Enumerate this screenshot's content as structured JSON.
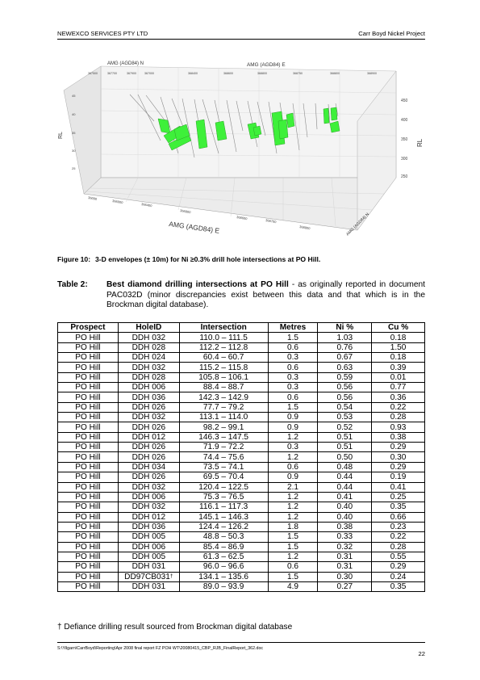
{
  "header": {
    "company": "NEWEXCO SERVICES PTY LTD",
    "project": "Carr Boyd Nickel Project"
  },
  "figure": {
    "label_top_north": "AMG (AGD84) N",
    "label_top_east": "AMG (AGD84) E",
    "label_bottom_east": "AMG (AGD84) E",
    "label_bottom_north": "AMG (AGD84) N",
    "label_rl_left": "RL",
    "label_rl_right": "RL",
    "top_ticks": [
      "367500",
      "367700",
      "367900",
      "367000",
      "368400",
      "368600",
      "368800",
      "368750",
      "368800",
      "368900"
    ],
    "right_ticks": [
      "450",
      "400",
      "350",
      "300",
      "250"
    ],
    "left_ticks": [
      "45",
      "40",
      "35",
      "30",
      "25"
    ],
    "bottom_ticks": [
      "36000",
      "366000",
      "366400",
      "366800",
      "368600",
      "368700",
      "368800"
    ],
    "envelope_color": "#3ef03a"
  },
  "figure_caption": {
    "number": "Figure 10:",
    "text": "3-D envelopes (± 10m) for Ni ≥0.3% drill hole intersections at PO Hill."
  },
  "table_caption": {
    "number": "Table 2:",
    "bold_text": "Best diamond drilling intersections at PO Hill",
    "rest_text": " - as originally reported in document PAC032D (minor discrepancies exist between this data and that which is in the Brockman digital database)."
  },
  "table": {
    "headers": [
      "Prospect",
      "HoleID",
      "Intersection",
      "Metres",
      "Ni %",
      "Cu %"
    ],
    "rows": [
      [
        "PO Hill",
        "DDH 032",
        "110.0 – 111.5",
        "1.5",
        "1.03",
        "0.18"
      ],
      [
        "PO Hill",
        "DDH 028",
        "112.2 – 112.8",
        "0.6",
        "0.76",
        "1.50"
      ],
      [
        "PO Hill",
        "DDH 024",
        "60.4 – 60.7",
        "0.3",
        "0.67",
        "0.18"
      ],
      [
        "PO Hill",
        "DDH 032",
        "115.2 – 115.8",
        "0.6",
        "0.63",
        "0.39"
      ],
      [
        "PO Hill",
        "DDH 028",
        "105.8 – 106.1",
        "0.3",
        "0.59",
        "0.01"
      ],
      [
        "PO Hill",
        "DDH 006",
        "88.4 – 88.7",
        "0.3",
        "0.56",
        "0.77"
      ],
      [
        "PO Hill",
        "DDH 036",
        "142.3 – 142.9",
        "0.6",
        "0.56",
        "0.36"
      ],
      [
        "PO Hill",
        "DDH 026",
        "77.7 – 79.2",
        "1.5",
        "0.54",
        "0.22"
      ],
      [
        "PO Hill",
        "DDH 032",
        "113.1 – 114.0",
        "0.9",
        "0.53",
        "0.28"
      ],
      [
        "PO Hill",
        "DDH 026",
        "98.2 – 99.1",
        "0.9",
        "0.52",
        "0.93"
      ],
      [
        "PO Hill",
        "DDH 012",
        "146.3 – 147.5",
        "1.2",
        "0.51",
        "0.38"
      ],
      [
        "PO Hill",
        "DDH 026",
        "71.9 – 72.2",
        "0.3",
        "0.51",
        "0.29"
      ],
      [
        "PO Hill",
        "DDH 026",
        "74.4 – 75.6",
        "1.2",
        "0.50",
        "0.30"
      ],
      [
        "PO Hill",
        "DDH 034",
        "73.5 – 74.1",
        "0.6",
        "0.48",
        "0.29"
      ],
      [
        "PO Hill",
        "DDH 026",
        "69.5 – 70.4",
        "0.9",
        "0.44",
        "0.19"
      ],
      [
        "PO Hill",
        "DDH 032",
        "120.4 – 122.5",
        "2.1",
        "0.44",
        "0.41"
      ],
      [
        "PO Hill",
        "DDH 006",
        "75.3 – 76.5",
        "1.2",
        "0.41",
        "0.25"
      ],
      [
        "PO Hill",
        "DDH 032",
        "116.1 – 117.3",
        "1.2",
        "0.40",
        "0.35"
      ],
      [
        "PO Hill",
        "DDH 012",
        "145.1 – 146.3",
        "1.2",
        "0.40",
        "0.66"
      ],
      [
        "PO Hill",
        "DDH 036",
        "124.4 – 126.2",
        "1.8",
        "0.38",
        "0.23"
      ],
      [
        "PO Hill",
        "DDH 005",
        "48.8 – 50.3",
        "1.5",
        "0.33",
        "0.22"
      ],
      [
        "PO Hill",
        "DDH 006",
        "85.4 – 86.9",
        "1.5",
        "0.32",
        "0.28"
      ],
      [
        "PO Hill",
        "DDH 005",
        "61.3 – 62.5",
        "1.2",
        "0.31",
        "0.55"
      ],
      [
        "PO Hill",
        "DDH 031",
        "96.0 – 96.6",
        "0.6",
        "0.31",
        "0.29"
      ],
      [
        "PO Hill",
        "DD97CB031",
        "134.1 – 135.6",
        "1.5",
        "0.30",
        "0.24"
      ],
      [
        "PO Hill",
        "DDH 031",
        "89.0 – 93.9",
        "4.9",
        "0.27",
        "0.35"
      ]
    ],
    "dagger_row_index": 24,
    "dagger": "†"
  },
  "footnote": "† Defiance drilling result sourced from Brockman digital database",
  "footer": {
    "path": "S:\\Yilgarn\\CarrBoyd\\Reporting\\Apr 2008 final report FZ POH WT\\20080415_CBP_RJB_FinalReport_362.doc",
    "page": "22"
  }
}
